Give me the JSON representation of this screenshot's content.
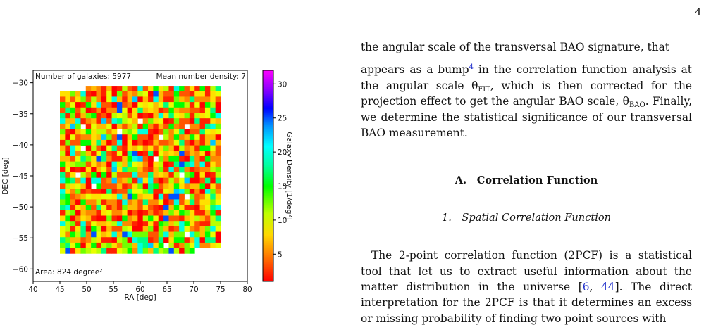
{
  "page_number": "4",
  "figure": {
    "top_left_label": "Number of galaxies: 5977",
    "top_right_label": "Mean number density: 7",
    "area_label": "Area: 824 degree²",
    "y_axis_label": "DEC [deg]",
    "x_axis_label": "RA [deg]",
    "colorbar_label": "Galaxy Density [1/deg²]",
    "x_ticks": [
      "40",
      "45",
      "50",
      "55",
      "60",
      "65",
      "70",
      "75",
      "80"
    ],
    "y_ticks": [
      "−30",
      "−35",
      "−40",
      "−45",
      "−50",
      "−55",
      "−60"
    ],
    "colorbar_ticks": [
      "30",
      "25",
      "20",
      "15",
      "10",
      "5"
    ]
  },
  "chart_data": {
    "type": "heatmap",
    "xlabel": "RA [deg]",
    "ylabel": "DEC [deg]",
    "xlim": [
      40,
      80
    ],
    "ylim": [
      -62,
      -28
    ],
    "colorbar": {
      "label": "Galaxy Density [1/deg²]",
      "range": [
        1,
        32
      ],
      "cmap": "rainbow-reversed (red=low, magenta=high)"
    },
    "x_ticks": [
      40,
      45,
      50,
      55,
      60,
      65,
      70,
      75,
      80
    ],
    "y_ticks": [
      -30,
      -35,
      -40,
      -45,
      -50,
      -55,
      -60
    ],
    "colorbar_ticks": [
      5,
      10,
      15,
      20,
      25,
      30
    ],
    "annotations": [
      "Number of galaxies: 5977",
      "Mean number density: 7",
      "Area: 824 degree²"
    ],
    "grid": false
  },
  "text": {
    "para1": "the angular scale of the transversal BAO signature, that",
    "para2_a": "appears as a bump",
    "para2_fn": "4",
    "para2_b": " in the correlation function analysis at the angular scale θ",
    "para2_sub1": "FIT",
    "para2_c": ", which is then corrected for the projection effect to get the angular BAO scale, θ",
    "para2_sub2": "BAO",
    "para2_d": ". Finally, we determine the statistical significance of our transversal BAO measurement.",
    "section_heading": "A. Correlation Function",
    "subsection_heading": "1. Spatial Correlation Function",
    "para3_a": "The 2-point correlation function (2PCF) is a statistical tool that let us to extract useful information about the matter distribution in the universe [",
    "para3_cite1": "6",
    "para3_sep": ", ",
    "para3_cite2": "44",
    "para3_b": "]. The direct interpretation for the 2PCF is that it determines an excess or missing probability of finding two point sources with"
  }
}
